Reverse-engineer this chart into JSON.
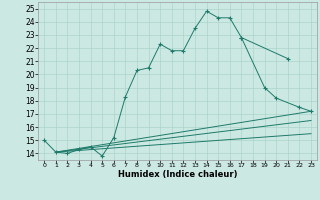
{
  "xlabel": "Humidex (Indice chaleur)",
  "xlim": [
    -0.5,
    23.5
  ],
  "ylim": [
    13.5,
    25.5
  ],
  "xticks": [
    0,
    1,
    2,
    3,
    4,
    5,
    6,
    7,
    8,
    9,
    10,
    11,
    12,
    13,
    14,
    15,
    16,
    17,
    18,
    19,
    20,
    21,
    22,
    23
  ],
  "yticks": [
    14,
    15,
    16,
    17,
    18,
    19,
    20,
    21,
    22,
    23,
    24,
    25
  ],
  "bg_color": "#cce8e3",
  "line_color": "#1e7a6a",
  "grid_color": "#aad4cc",
  "line1_x": [
    0,
    1,
    2,
    3,
    4,
    5,
    6,
    7,
    8,
    9,
    10,
    11,
    12,
    13,
    14,
    15,
    16,
    17,
    21
  ],
  "line1_y": [
    15.0,
    14.1,
    14.0,
    14.3,
    14.5,
    13.8,
    15.2,
    18.3,
    20.3,
    20.5,
    22.3,
    21.8,
    21.8,
    23.5,
    24.8,
    24.3,
    24.3,
    22.8,
    21.2
  ],
  "line2_x": [
    17,
    19,
    20,
    22,
    23
  ],
  "line2_y": [
    22.8,
    19.0,
    18.2,
    17.5,
    17.2
  ],
  "straight_lines": [
    {
      "x": [
        1,
        23
      ],
      "y": [
        14.1,
        17.2
      ]
    },
    {
      "x": [
        1,
        23
      ],
      "y": [
        14.1,
        16.5
      ]
    },
    {
      "x": [
        1,
        23
      ],
      "y": [
        14.1,
        15.5
      ]
    }
  ]
}
